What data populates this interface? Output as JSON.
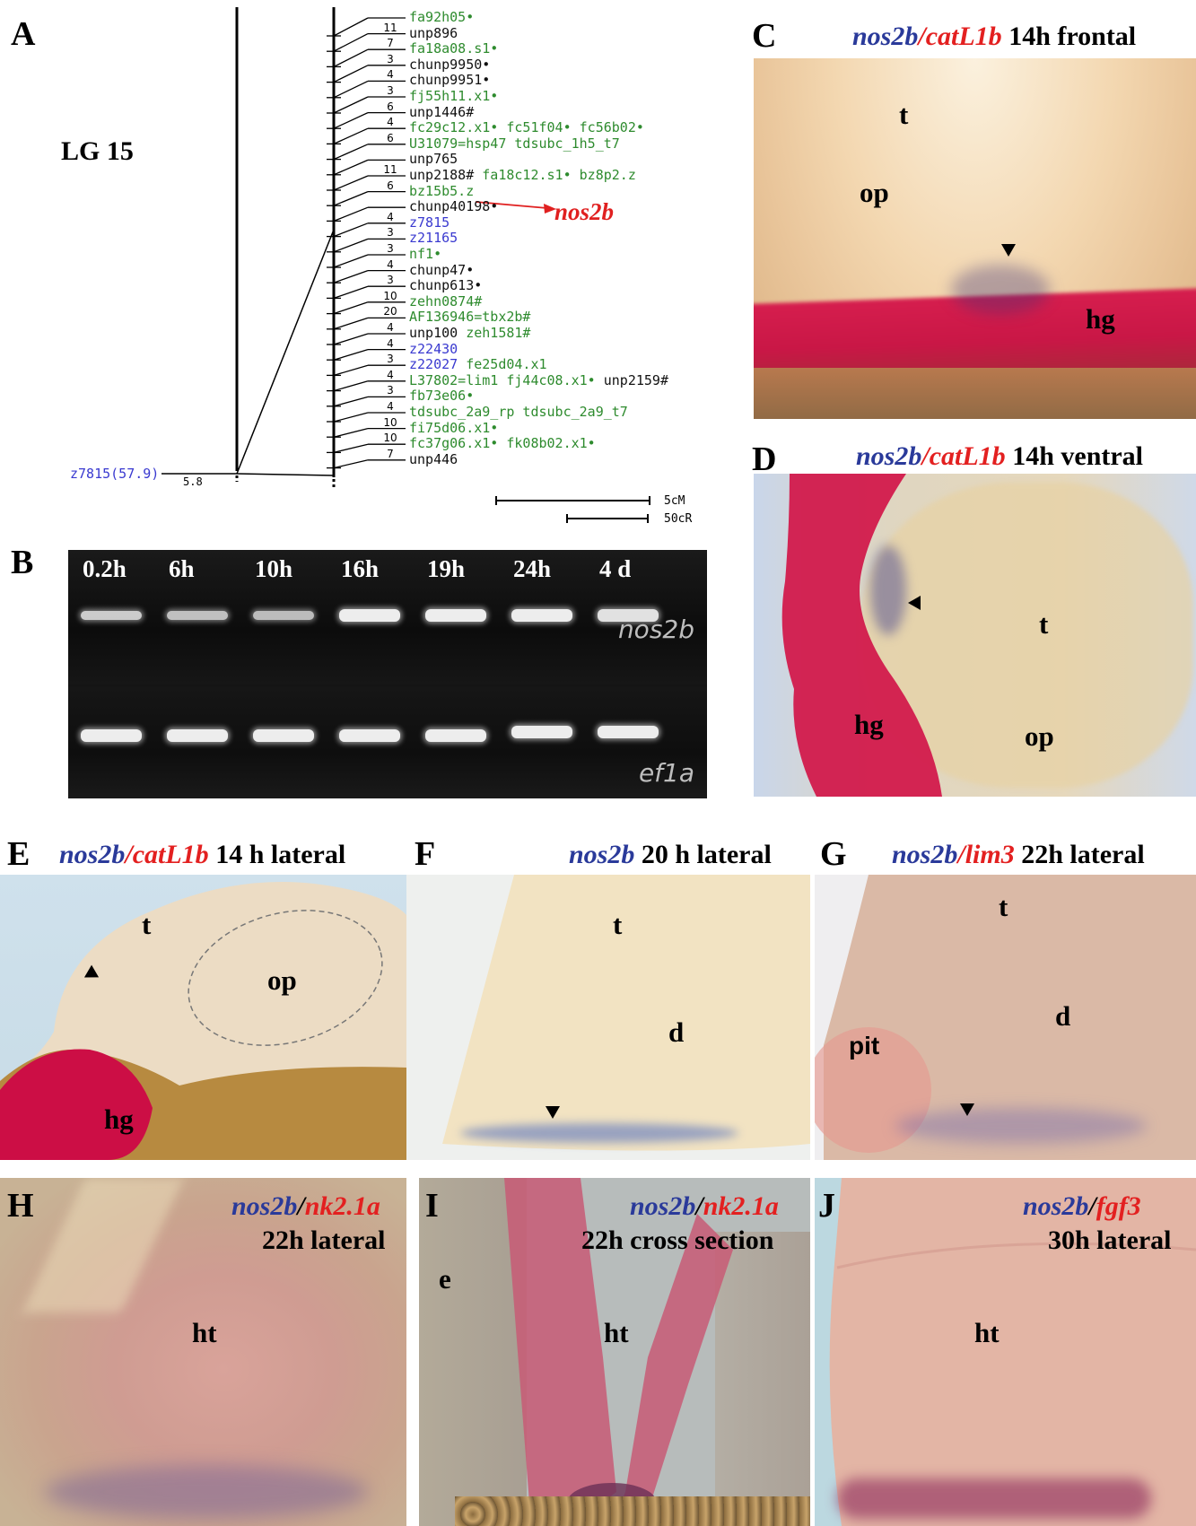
{
  "panels": {
    "A": {
      "label": "A",
      "lg_title": "LG 15",
      "left_marker": "z7815(57.9)",
      "left_dist": "5.8",
      "markers": [
        {
          "text": "fa92h05•",
          "color": "green",
          "cnt": ""
        },
        {
          "text": "unp896",
          "color": "black",
          "cnt": "11"
        },
        {
          "text": "fa18a08.s1•",
          "color": "green",
          "cnt": "7"
        },
        {
          "text": "chunp9950•",
          "color": "black",
          "cnt": "3"
        },
        {
          "text": "chunp9951•",
          "color": "black",
          "cnt": "4"
        },
        {
          "text": "fj55h11.x1•",
          "color": "green",
          "cnt": "3"
        },
        {
          "text": "unp1446#",
          "color": "black",
          "cnt": "6"
        },
        {
          "text": "fc29c12.x1•  fc51f04•  fc56b02•",
          "color": "green",
          "cnt": "4"
        },
        {
          "text": "U31079=hsp47  tdsubc_1h5_t7",
          "color": "green",
          "cnt": "6"
        },
        {
          "text": "unp765",
          "color": "black",
          "cnt": ""
        },
        {
          "text": "unp2188#",
          "color": "black",
          "cnt": "11",
          "extra": "fa18c12.s1•  bz8p2.z"
        },
        {
          "text": "bz15b5.z",
          "color": "green",
          "cnt": "6"
        },
        {
          "text": "chunp40198•",
          "color": "black",
          "cnt": ""
        },
        {
          "text": "z7815",
          "color": "blue",
          "cnt": "4"
        },
        {
          "text": "z21165",
          "color": "blue",
          "cnt": "3"
        },
        {
          "text": "nf1•",
          "color": "green",
          "cnt": "3"
        },
        {
          "text": "chunp47•",
          "color": "black",
          "cnt": "4"
        },
        {
          "text": "chunp613•",
          "color": "black",
          "cnt": "3"
        },
        {
          "text": "zehn0874#",
          "color": "green",
          "cnt": "10"
        },
        {
          "text": "AF136946=tbx2b#",
          "color": "green",
          "cnt": "20"
        },
        {
          "text": "unp100",
          "color": "black",
          "cnt": "4",
          "extra": "zeh1581#"
        },
        {
          "text": "z22430",
          "color": "blue",
          "cnt": "4"
        },
        {
          "text": "z22027",
          "color": "blue",
          "cnt": "3",
          "extra": "fe25d04.x1"
        },
        {
          "text": "L37802=lim1  fj44c08.x1•",
          "color": "green",
          "cnt": "4",
          "extra2": "unp2159#"
        },
        {
          "text": "fb73e06•",
          "color": "green",
          "cnt": "3"
        },
        {
          "text": "tdsubc_2a9_rp  tdsubc_2a9_t7",
          "color": "green",
          "cnt": "4"
        },
        {
          "text": "fi75d06.x1•",
          "color": "green",
          "cnt": "10"
        },
        {
          "text": "fc37g06.x1•  fk08b02.x1•",
          "color": "green",
          "cnt": "10"
        },
        {
          "text": "unp446",
          "color": "black",
          "cnt": "7"
        }
      ],
      "nos2b": "nos2b",
      "scale1": "5cM",
      "scale2": "50cR",
      "colors": {
        "green": "#2e8b2e",
        "blue": "#3a3ad0",
        "black": "#111111",
        "red": "#e02020"
      }
    },
    "B": {
      "label": "B",
      "times": [
        "0.2h",
        "6h",
        "10h",
        "16h",
        "19h",
        "24h",
        "4 d"
      ],
      "gene1": "nos2b",
      "gene2": "ef1a"
    },
    "C": {
      "label": "C",
      "g1": "nos2b",
      "slash": "/",
      "g2": "catL1b",
      "rest": " 14h frontal",
      "t": "t",
      "op": "op",
      "hg": "hg"
    },
    "D": {
      "label": "D",
      "g1": "nos2b",
      "slash": "/",
      "g2": "catL1b",
      "rest": " 14h ventral",
      "t": "t",
      "op": "op",
      "hg": "hg"
    },
    "E": {
      "label": "E",
      "g1": "nos2b",
      "slash": "/",
      "g2": "catL1b",
      "rest": " 14 h  lateral",
      "t": "t",
      "op": "op",
      "hg": "hg"
    },
    "F": {
      "label": "F",
      "g1": "nos2b",
      "rest": " 20 h lateral",
      "t": "t",
      "d": "d"
    },
    "G": {
      "label": "G",
      "g1": "nos2b",
      "slash": "/",
      "g2": "lim3",
      "rest": " 22h lateral",
      "t": "t",
      "d": "d",
      "pit": "pit"
    },
    "H": {
      "label": "H",
      "g1": "nos2b",
      "slash": "/",
      "g2": "nk2.1a",
      "rest": "22h lateral",
      "ht": "ht"
    },
    "I": {
      "label": "I",
      "g1": "nos2b",
      "slash": "/",
      "g2": "nk2.1a",
      "rest": "22h cross section",
      "ht": "ht",
      "e": "e"
    },
    "J": {
      "label": "J",
      "g1": "nos2b",
      "slash": "/",
      "g2": "fgf3",
      "rest": "30h lateral",
      "ht": "ht"
    }
  }
}
